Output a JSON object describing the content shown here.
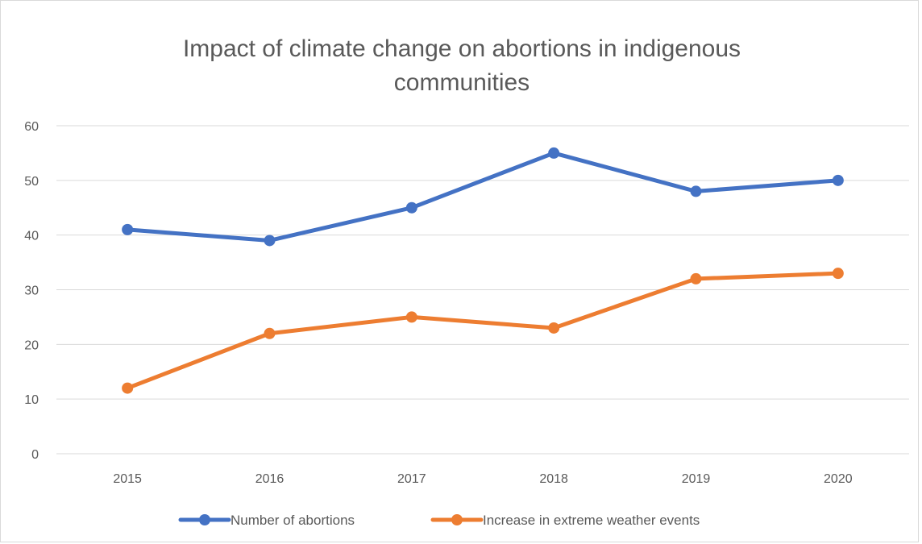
{
  "chart_data": {
    "type": "line",
    "title_lines": [
      "Impact of climate change on abortions in indigenous",
      "communities"
    ],
    "categories": [
      "2015",
      "2016",
      "2017",
      "2018",
      "2019",
      "2020"
    ],
    "series": [
      {
        "name": "Number of abortions",
        "color": "#4472C4",
        "values": [
          41,
          39,
          45,
          55,
          48,
          50
        ]
      },
      {
        "name": "Increase in extreme weather events",
        "color": "#ED7D31",
        "values": [
          12,
          22,
          25,
          23,
          32,
          33
        ]
      }
    ],
    "ylim": [
      0,
      60
    ],
    "yticks": [
      "0",
      "10",
      "20",
      "30",
      "40",
      "50",
      "60"
    ],
    "grid": true,
    "legend_position": "bottom"
  }
}
